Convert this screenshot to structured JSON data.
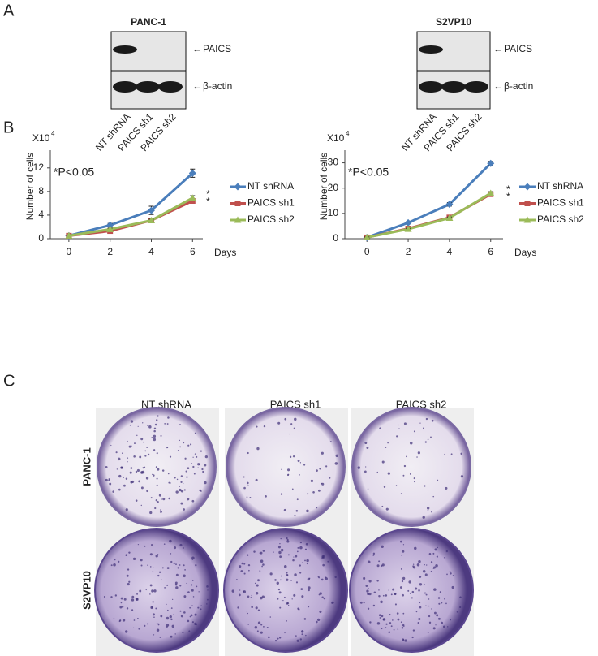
{
  "panel_labels": [
    "A",
    "B",
    "C"
  ],
  "blots": [
    {
      "cell_line": "PANC-1",
      "targets": [
        "PAICS",
        "β-actin"
      ],
      "lanes": [
        "NT shRNA",
        "PAICS sh1",
        "PAICS sh2"
      ]
    },
    {
      "cell_line": "S2VP10",
      "targets": [
        "PAICS",
        "β-actin"
      ],
      "lanes": [
        "NT shRNA",
        "PAICS sh1",
        "PAICS sh2"
      ]
    }
  ],
  "colony_assay": {
    "columns": [
      "NT shRNA",
      "PAICS sh1",
      "PAICS sh2"
    ],
    "rows": [
      "PANC-1",
      "S2VP10"
    ]
  },
  "chart_data": [
    {
      "type": "line",
      "y_label": "Number of cells",
      "unit": "X10",
      "unit_exponent": "4",
      "x_label": "Days",
      "annotation": "*P<0.05",
      "end_marks": [
        "*",
        "*"
      ],
      "x": [
        0,
        2,
        4,
        6
      ],
      "xlim": [
        -0.9,
        6.5
      ],
      "xticks": [
        0,
        2,
        4,
        6
      ],
      "ylim": [
        0,
        15
      ],
      "yticks": [
        0,
        4,
        8,
        12
      ],
      "series": [
        {
          "name": "NT shRNA",
          "color": "#4a7ebb",
          "marker": "diamond",
          "values": [
            0.5,
            2.3,
            4.8,
            11.1
          ],
          "errors": [
            0.2,
            0.3,
            0.7,
            0.7
          ]
        },
        {
          "name": "PAICS sh1",
          "color": "#c0504d",
          "marker": "square",
          "values": [
            0.5,
            1.3,
            3.1,
            6.4
          ],
          "errors": [
            0.1,
            0.2,
            0.2,
            0.3
          ]
        },
        {
          "name": "PAICS sh2",
          "color": "#9bbb59",
          "marker": "triangle",
          "values": [
            0.5,
            1.6,
            3.1,
            6.9
          ],
          "errors": [
            0.1,
            0.2,
            0.2,
            0.4
          ]
        }
      ]
    },
    {
      "type": "line",
      "y_label": "Number of cells",
      "unit": "X10",
      "unit_exponent": "4",
      "x_label": "Days",
      "annotation": "*P<0.05",
      "end_marks": [
        "*",
        "*"
      ],
      "x": [
        0,
        2,
        4,
        6
      ],
      "xlim": [
        -1.07,
        6.6
      ],
      "xticks": [
        0,
        2,
        4,
        6
      ],
      "ylim": [
        0,
        35
      ],
      "yticks": [
        0,
        10,
        20,
        30
      ],
      "series": [
        {
          "name": "NT shRNA",
          "color": "#4a7ebb",
          "marker": "diamond",
          "values": [
            0.5,
            6.3,
            13.6,
            29.8
          ],
          "errors": [
            0.2,
            0.4,
            0.7,
            0.8
          ]
        },
        {
          "name": "PAICS sh1",
          "color": "#c0504d",
          "marker": "square",
          "values": [
            0.5,
            4,
            8.4,
            17.6
          ],
          "errors": [
            0.2,
            0.3,
            0.4,
            0.6
          ]
        },
        {
          "name": "PAICS sh2",
          "color": "#9bbb59",
          "marker": "triangle",
          "values": [
            0.5,
            3.8,
            8.2,
            18
          ],
          "errors": [
            0.2,
            0.3,
            0.4,
            0.6
          ]
        }
      ]
    }
  ]
}
